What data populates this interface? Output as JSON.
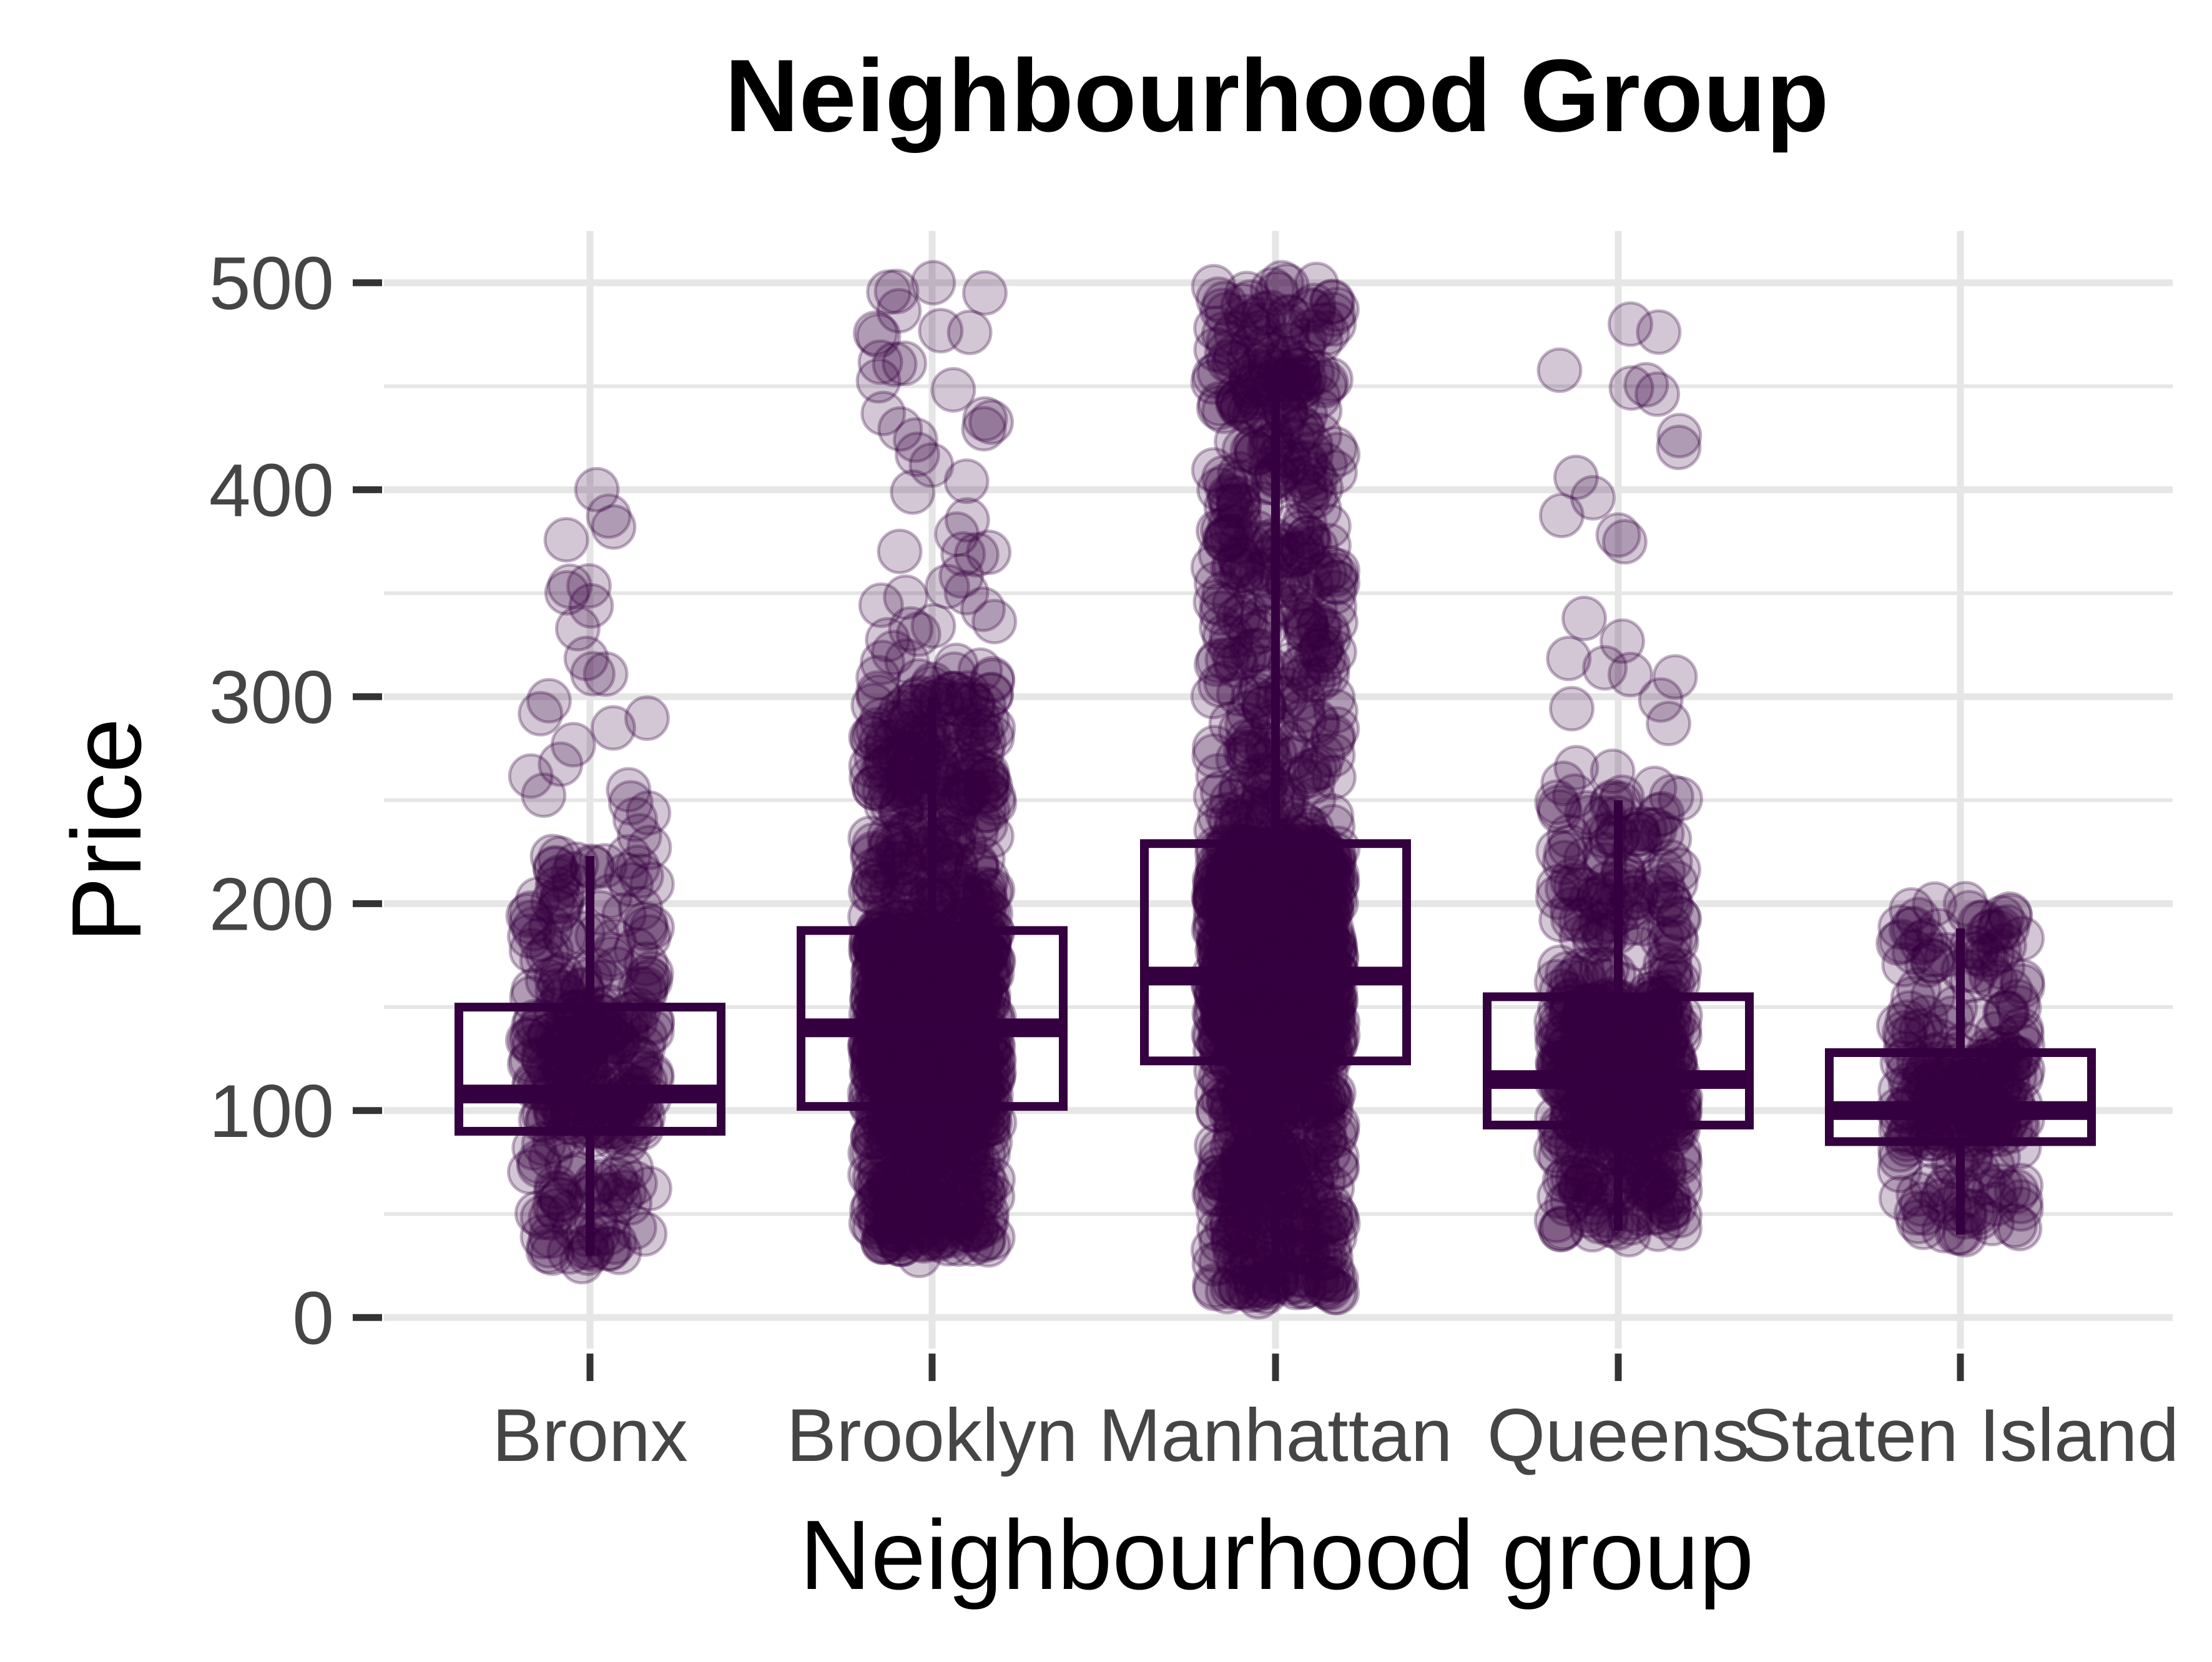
{
  "chart_data": {
    "type": "box",
    "title": "Neighbourhood Group",
    "xlabel": "Neighbourhood group",
    "ylabel": "Price",
    "categories": [
      "Bronx",
      "Brooklyn",
      "Manhattan",
      "Queens",
      "Staten Island"
    ],
    "ylim": [
      -15,
      525
    ],
    "y_ticks": [
      0,
      100,
      200,
      300,
      400,
      500
    ],
    "y_tick_labels": [
      "0",
      "100",
      "200",
      "300",
      "400",
      "500"
    ],
    "grid": true,
    "legend": "none",
    "colors": {
      "primary": "#35003f",
      "grid": "#e6e6e6",
      "tick_text": "#454545",
      "text": "#000000"
    },
    "boxes": [
      {
        "category": "Bronx",
        "q1": 90,
        "median": 108,
        "q3": 150,
        "whisker_low": 30,
        "whisker_high": 223,
        "point_min": 27,
        "point_max": 400,
        "density": 0.15
      },
      {
        "category": "Brooklyn",
        "q1": 102,
        "median": 140,
        "q3": 187,
        "whisker_low": 35,
        "whisker_high": 300,
        "point_min": 30,
        "point_max": 500,
        "density": 0.75
      },
      {
        "category": "Manhattan",
        "q1": 124,
        "median": 165,
        "q3": 229,
        "whisker_low": 12,
        "whisker_high": 450,
        "point_min": 10,
        "point_max": 500,
        "density": 1.0
      },
      {
        "category": "Queens",
        "q1": 93,
        "median": 115,
        "q3": 155,
        "whisker_low": 42,
        "whisker_high": 250,
        "point_min": 40,
        "point_max": 480,
        "density": 0.3
      },
      {
        "category": "Staten Island",
        "q1": 85,
        "median": 100,
        "q3": 128,
        "whisker_low": 40,
        "whisker_high": 188,
        "point_min": 40,
        "point_max": 200,
        "density": 0.1
      }
    ]
  }
}
